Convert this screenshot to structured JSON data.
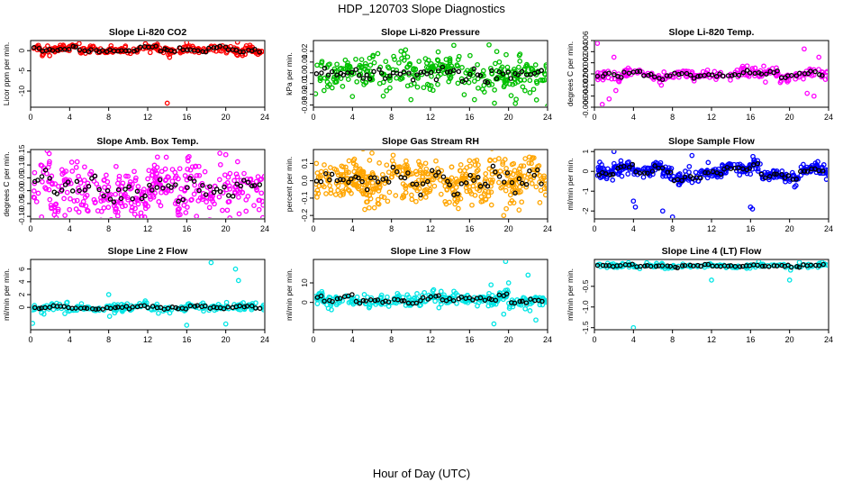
{
  "figure": {
    "title": "HDP_120703  Slope Diagnostics",
    "xlabel": "Hour of Day (UTC)"
  },
  "chart_data": [
    {
      "type": "scatter",
      "title": "Slope Li-820 CO2",
      "ylabel": "Licor ppm per min.",
      "color": "#ff0000",
      "xlim": [
        0,
        24
      ],
      "ylim": [
        -14,
        2.5
      ],
      "xticks": [
        0,
        4,
        8,
        12,
        16,
        20,
        24
      ],
      "xtick_labels": [
        "0",
        "4",
        "8",
        "12",
        "16",
        "20",
        "24"
      ],
      "yticks": [
        -10,
        -5,
        0
      ],
      "ytick_labels": [
        "-10",
        "-5",
        "0"
      ],
      "spread": 0.5,
      "base_offset": 0.3,
      "hourly_jitter": 0.4,
      "density": 260,
      "series": [
        {
          "name": "outliers",
          "points": [
            [
              14.0,
              -13.0
            ],
            [
              16.0,
              2.0
            ],
            [
              21.2,
              2.1
            ]
          ]
        },
        {
          "name": "hourly_means",
          "color": "#000000"
        }
      ]
    },
    {
      "type": "scatter",
      "title": "Slope Li-820 Pressure",
      "ylabel": "kPa per min.",
      "color": "#00c000",
      "xlim": [
        0,
        24
      ],
      "ylim": [
        -0.032,
        0.03
      ],
      "xticks": [
        0,
        4,
        8,
        12,
        16,
        20,
        24
      ],
      "xtick_labels": [
        "0",
        "4",
        "8",
        "12",
        "16",
        "20",
        "24"
      ],
      "yticks": [
        -0.03,
        -0.02,
        -0.01,
        0.0,
        0.01,
        0.02
      ],
      "ytick_labels": [
        "-0.03",
        "-0.02",
        "-0.01",
        "0.00",
        "0.01",
        "0.02"
      ],
      "spread": 0.008,
      "base_offset": 0.0,
      "hourly_jitter": 0.003,
      "density": 320,
      "series": [
        {
          "name": "outliers",
          "points": [
            [
              4.0,
              -0.022
            ],
            [
              10.0,
              -0.025
            ],
            [
              16.5,
              -0.025
            ],
            [
              24.0,
              -0.031
            ],
            [
              18.0,
              0.026
            ]
          ]
        },
        {
          "name": "hourly_means",
          "color": "#000000"
        }
      ]
    },
    {
      "type": "scatter",
      "title": "Slope Li-820 Temp.",
      "ylabel": "degrees C per min.",
      "color": "#ff00ff",
      "xlim": [
        0,
        24
      ],
      "ylim": [
        -0.006,
        0.006
      ],
      "xticks": [
        0,
        4,
        8,
        12,
        16,
        20,
        24
      ],
      "xtick_labels": [
        "0",
        "4",
        "8",
        "12",
        "16",
        "20",
        "24"
      ],
      "yticks": [
        -0.006,
        -0.004,
        -0.002,
        0.0,
        0.002,
        0.004,
        0.006
      ],
      "ytick_labels": [
        "-0.006",
        "-0.004",
        "-0.002",
        "0.000",
        "0.002",
        "0.004",
        "0.006"
      ],
      "spread": 0.0005,
      "base_offset": 0.0,
      "hourly_jitter": 0.0003,
      "density": 200,
      "series": [
        {
          "name": "outliers",
          "points": [
            [
              0.3,
              0.0055
            ],
            [
              0.8,
              -0.0055
            ],
            [
              2.0,
              0.003
            ],
            [
              1.5,
              -0.0045
            ],
            [
              21.5,
              0.0045
            ],
            [
              22.5,
              -0.004
            ],
            [
              23.0,
              0.003
            ],
            [
              2.2,
              -0.003
            ],
            [
              21.8,
              -0.0035
            ]
          ]
        },
        {
          "name": "hourly_means",
          "color": "#000000"
        }
      ]
    },
    {
      "type": "scatter",
      "title": "Slope Amb. Box Temp.",
      "ylabel": "degrees C per min.",
      "color": "#ff00ff",
      "xlim": [
        0,
        24
      ],
      "ylim": [
        -0.11,
        0.16
      ],
      "xticks": [
        0,
        4,
        8,
        12,
        16,
        20,
        24
      ],
      "xtick_labels": [
        "0",
        "4",
        "8",
        "12",
        "16",
        "20",
        "24"
      ],
      "yticks": [
        -0.1,
        -0.05,
        0.0,
        0.05,
        0.1,
        0.15
      ],
      "ytick_labels": [
        "-0.10",
        "-0.05",
        "0.00",
        "0.05",
        "0.10",
        "0.15"
      ],
      "spread": 0.05,
      "base_offset": 0.0,
      "hourly_jitter": 0.03,
      "density": 380,
      "series": [
        {
          "name": "outliers",
          "points": [
            [
              23.8,
              -0.105
            ],
            [
              20.0,
              0.14
            ],
            [
              17.0,
              -0.1
            ]
          ]
        },
        {
          "name": "hourly_means",
          "color": "#000000"
        }
      ]
    },
    {
      "type": "scatter",
      "title": "Slope Gas Stream RH",
      "ylabel": "percent per min.",
      "color": "#ffa500",
      "xlim": [
        0,
        24
      ],
      "ylim": [
        -0.22,
        0.18
      ],
      "xticks": [
        0,
        4,
        8,
        12,
        16,
        20,
        24
      ],
      "xtick_labels": [
        "0",
        "4",
        "8",
        "12",
        "16",
        "20",
        "24"
      ],
      "yticks": [
        -0.2,
        -0.1,
        0.0,
        0.1
      ],
      "ytick_labels": [
        "-0.2",
        "-0.1",
        "0.0",
        "0.1"
      ],
      "spread": 0.06,
      "base_offset": 0.0,
      "hourly_jitter": 0.03,
      "density": 480,
      "series": [
        {
          "name": "outliers",
          "points": [
            [
              19.5,
              -0.2
            ],
            [
              6.0,
              0.16
            ]
          ]
        },
        {
          "name": "hourly_means",
          "color": "#000000"
        }
      ]
    },
    {
      "type": "scatter",
      "title": "Slope Sample Flow",
      "ylabel": "ml/min per min.",
      "color": "#0000ff",
      "xlim": [
        0,
        24
      ],
      "ylim": [
        -2.4,
        1.1
      ],
      "xticks": [
        0,
        4,
        8,
        12,
        16,
        20,
        24
      ],
      "xtick_labels": [
        "0",
        "4",
        "8",
        "12",
        "16",
        "20",
        "24"
      ],
      "yticks": [
        -2,
        -1,
        0,
        1
      ],
      "ytick_labels": [
        "-2",
        "-1",
        "0",
        "1"
      ],
      "spread": 0.15,
      "base_offset": 0.0,
      "hourly_jitter": 0.2,
      "density": 400,
      "series": [
        {
          "name": "outliers",
          "points": [
            [
              4.0,
              -1.5
            ],
            [
              4.2,
              -1.8
            ],
            [
              7.0,
              -2.0
            ],
            [
              8.0,
              -2.3
            ],
            [
              16.0,
              -1.8
            ],
            [
              16.2,
              -1.9
            ],
            [
              2.0,
              1.0
            ],
            [
              10.0,
              0.8
            ]
          ]
        },
        {
          "name": "hourly_means",
          "color": "#000000"
        }
      ]
    },
    {
      "type": "scatter",
      "title": "Slope Line 2 Flow",
      "ylabel": "ml/min per min.",
      "color": "#00e5e5",
      "xlim": [
        0,
        24
      ],
      "ylim": [
        -3.5,
        7.5
      ],
      "xticks": [
        0,
        4,
        8,
        12,
        16,
        20,
        24
      ],
      "xtick_labels": [
        "0",
        "4",
        "8",
        "12",
        "16",
        "20",
        "24"
      ],
      "yticks": [
        0,
        2,
        4,
        6
      ],
      "ytick_labels": [
        "0",
        "2",
        "4",
        "6"
      ],
      "spread": 0.3,
      "base_offset": 0.0,
      "hourly_jitter": 0.15,
      "density": 220,
      "series": [
        {
          "name": "outliers",
          "points": [
            [
              18.5,
              7.0
            ],
            [
              21.0,
              6.0
            ],
            [
              21.3,
              4.2
            ],
            [
              8.0,
              2.0
            ],
            [
              16.0,
              -2.8
            ],
            [
              0.2,
              -2.5
            ],
            [
              8.1,
              -1.4
            ],
            [
              20.0,
              -2.6
            ]
          ]
        },
        {
          "name": "hourly_means",
          "color": "#000000"
        }
      ]
    },
    {
      "type": "scatter",
      "title": "Slope Line 3 Flow",
      "ylabel": "ml/min per min.",
      "color": "#00e5e5",
      "xlim": [
        0,
        24
      ],
      "ylim": [
        -14,
        22
      ],
      "xticks": [
        0,
        4,
        8,
        12,
        16,
        20,
        24
      ],
      "xtick_labels": [
        "0",
        "4",
        "8",
        "12",
        "16",
        "20",
        "24"
      ],
      "yticks": [
        0,
        10
      ],
      "ytick_labels": [
        "0",
        "10"
      ],
      "spread": 1.5,
      "base_offset": 1.0,
      "hourly_jitter": 1.0,
      "density": 300,
      "series": [
        {
          "name": "outliers",
          "points": [
            [
              19.7,
              21.0
            ],
            [
              19.5,
              -6.0
            ],
            [
              18.5,
              -11.0
            ],
            [
              22.0,
              14.0
            ],
            [
              20.0,
              10.0
            ],
            [
              22.8,
              -9.0
            ],
            [
              18.2,
              9.0
            ]
          ]
        },
        {
          "name": "hourly_means",
          "color": "#000000"
        }
      ]
    },
    {
      "type": "scatter",
      "title": "Slope Line 4 (LT) Flow",
      "ylabel": "ml/min per min.",
      "color": "#00e5e5",
      "xlim": [
        0,
        24
      ],
      "ylim": [
        -1.55,
        0.15
      ],
      "xticks": [
        0,
        4,
        8,
        12,
        16,
        20,
        24
      ],
      "xtick_labels": [
        "0",
        "4",
        "8",
        "12",
        "16",
        "20",
        "24"
      ],
      "yticks": [
        -1.5,
        -1.0,
        -0.5
      ],
      "ytick_labels": [
        "-1.5",
        "-1.0",
        "-0.5"
      ],
      "spread": 0.03,
      "base_offset": 0.0,
      "hourly_jitter": 0.02,
      "density": 170,
      "series": [
        {
          "name": "outliers",
          "points": [
            [
              4.0,
              -1.5
            ],
            [
              12.0,
              -0.35
            ],
            [
              20.0,
              -0.35
            ],
            [
              21.0,
              0.08
            ]
          ]
        },
        {
          "name": "hourly_means",
          "color": "#000000"
        }
      ]
    }
  ]
}
